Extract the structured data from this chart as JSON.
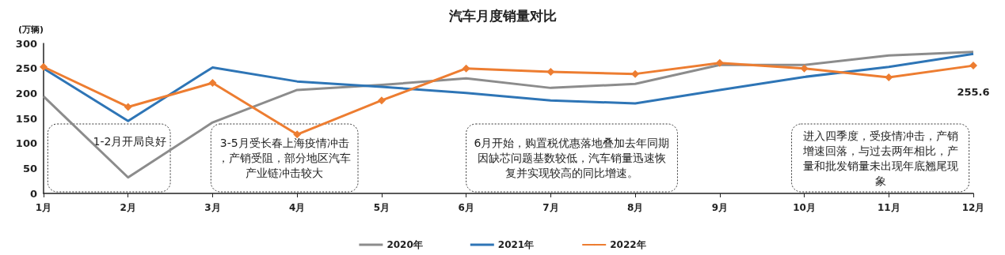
{
  "chart_data": {
    "type": "line",
    "title": "汽车月度销量对比",
    "ylabel": "(万辆)",
    "categories": [
      "1月",
      "2月",
      "3月",
      "4月",
      "5月",
      "6月",
      "7月",
      "8月",
      "9月",
      "10月",
      "11月",
      "12月"
    ],
    "ylim": [
      0,
      300
    ],
    "yticks": [
      0,
      50,
      100,
      150,
      200,
      250,
      300
    ],
    "grid": false,
    "legend": "bottom",
    "series": [
      {
        "name": "2020年",
        "color": "#8c8c8c",
        "marker": "none",
        "values": [
          194,
          32,
          142,
          207,
          217,
          230,
          211,
          219,
          257,
          257,
          276,
          283
        ]
      },
      {
        "name": "2021年",
        "color": "#2e75b6",
        "marker": "none",
        "values": [
          250,
          145,
          252,
          224,
          213,
          201,
          186,
          180,
          207,
          233,
          253,
          279
        ]
      },
      {
        "name": "2022年",
        "color": "#ed7d31",
        "marker": "diamond",
        "values": [
          253,
          173,
          221,
          118,
          186,
          250,
          243,
          239,
          261,
          250,
          232,
          255.6
        ],
        "value_labels": [
          null,
          null,
          null,
          null,
          null,
          null,
          null,
          null,
          null,
          null,
          null,
          "255.6"
        ]
      }
    ],
    "annotations": [
      "1-2月开局良好",
      "3-5月受长春上海疫情冲击，产销受阻，部分地区汽车产业链冲击较大",
      "6月开始，购置税优惠落地叠加去年同期因缺芯问题基数较低，汽车销量迅速恢复并实现较高的同比增速。",
      "进入四季度，受疫情冲击，产销增速回落，与过去两年相比，产量和批发销量未出现年底翘尾现象"
    ]
  }
}
